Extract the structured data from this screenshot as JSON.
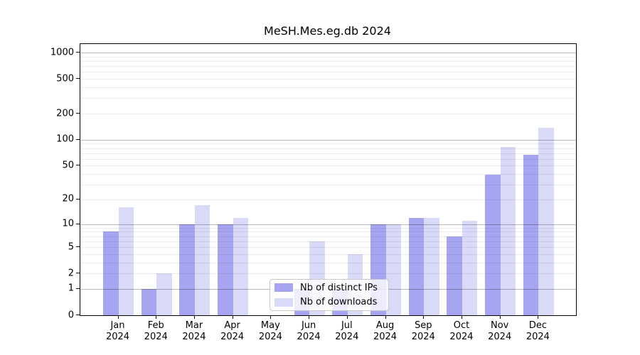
{
  "chart_data": {
    "type": "bar",
    "title": "MeSH.Mes.eg.db 2024",
    "categories": [
      "Jan",
      "Feb",
      "Mar",
      "Apr",
      "May",
      "Jun",
      "Jul",
      "Aug",
      "Sep",
      "Oct",
      "Nov",
      "Dec"
    ],
    "x_year_label": "2024",
    "series": [
      {
        "name": "Nb of distinct IPs",
        "color": "#a5a5f2",
        "values": [
          8,
          1,
          10,
          10,
          0,
          1,
          1,
          10,
          12,
          7,
          39,
          67
        ]
      },
      {
        "name": "Nb of downloads",
        "color": "#d9d9f8",
        "values": [
          16,
          2,
          17,
          12,
          0,
          6,
          4,
          10,
          12,
          11,
          82,
          137
        ]
      }
    ],
    "y_ticks": [
      0,
      1,
      2,
      5,
      10,
      20,
      50,
      100,
      200,
      500,
      1000
    ],
    "y_scale": "log10(1+value)",
    "ylim": [
      0,
      1250
    ],
    "grid": "both, drawn over bars; major lines at powers of 10",
    "legend_position": "inside, lower center"
  }
}
